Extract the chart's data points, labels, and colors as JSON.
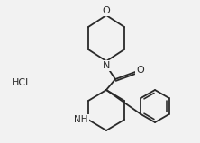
{
  "bg_color": "#f2f2f2",
  "line_color": "#2a2a2a",
  "text_color": "#2a2a2a",
  "hcl_label": "HCl",
  "O_morph_label": "O",
  "N_label": "N",
  "NH_label": "NH",
  "O_ketone_label": "O",
  "fig_width": 2.22,
  "fig_height": 1.59,
  "dpi": 100
}
